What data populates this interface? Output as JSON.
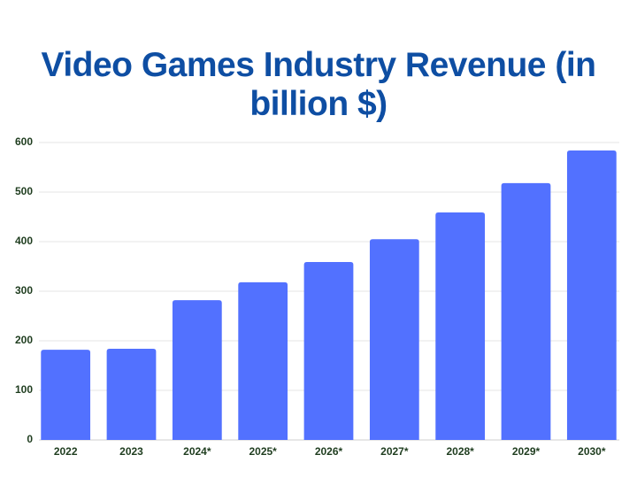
{
  "chart_data": {
    "type": "bar",
    "title": "Video Games Industry Revenue (in billion $)",
    "categories": [
      "2022",
      "2023",
      "2024*",
      "2025*",
      "2026*",
      "2027*",
      "2028*",
      "2029*",
      "2030*"
    ],
    "values": [
      182,
      184,
      282,
      318,
      359,
      405,
      459,
      518,
      584
    ],
    "color": "#5271ff",
    "ylim": [
      0,
      600
    ],
    "yticks": [
      0,
      100,
      200,
      300,
      400,
      500,
      600
    ],
    "grid": true
  }
}
